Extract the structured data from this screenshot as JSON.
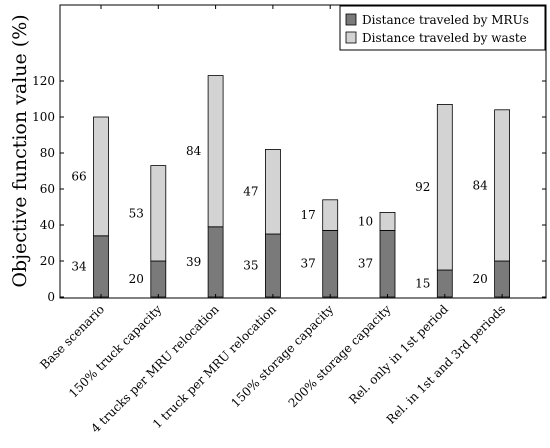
{
  "chart_data": {
    "type": "bar",
    "stacked": true,
    "categories": [
      "Base scenario",
      "150% truck capacity",
      "4 trucks per MRU relocation",
      "1 truck per MRU relocation",
      "150% storage capacity",
      "200% storage capacity",
      "Rel. only in 1st period",
      "Rel. in 1st and 3rd periods"
    ],
    "series": [
      {
        "name": "Distance traveled by MRUs",
        "values": [
          34,
          20,
          39,
          35,
          37,
          37,
          15,
          20
        ],
        "color": "#7a7a7a"
      },
      {
        "name": "Distance traveled by waste",
        "values": [
          66,
          53,
          84,
          47,
          17,
          10,
          92,
          84
        ],
        "color": "#d3d3d3"
      }
    ],
    "ylabel": "Objective function value (%)",
    "xlabel": "",
    "ylim": [
      0,
      130
    ],
    "yticks": [
      0,
      20,
      40,
      60,
      80,
      100,
      120
    ],
    "grid": false,
    "legend_position": "top-right"
  }
}
